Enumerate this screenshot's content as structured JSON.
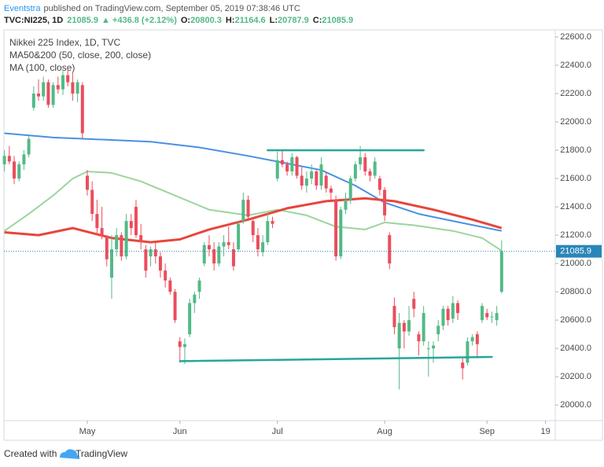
{
  "header": {
    "author": "Eventstra",
    "published": "published on TradingView.com, September 05, 2019 07:38:46 UTC",
    "symbol": "TVC:NI225, 1D",
    "price": "21085.9",
    "change": "▲ +436.8 (+2.12%)",
    "ohlc": [
      {
        "label": "O:",
        "value": "20800.3"
      },
      {
        "label": "H:",
        "value": "21164.6"
      },
      {
        "label": "L:",
        "value": "20787.9"
      },
      {
        "label": "C:",
        "value": "21085.9"
      }
    ]
  },
  "footer": {
    "created": "Created with",
    "brand": "TradingView"
  },
  "chart_data": {
    "type": "candlestick",
    "legend": [
      "Nikkei 225 Index, 1D, TVC",
      "MA50&200 (50, close, 200, close)",
      "MA (100, close)"
    ],
    "up_color": "#53b987",
    "down_color": "#eb4d5c",
    "x": [
      0,
      1,
      2,
      3,
      4,
      5,
      6,
      7,
      8,
      9,
      10,
      11,
      12,
      13,
      14,
      15,
      16,
      17,
      18,
      19,
      20,
      21,
      22,
      23,
      24,
      25,
      26,
      27,
      28,
      29,
      30,
      31,
      32,
      33,
      34,
      35,
      36,
      37,
      38,
      39,
      40,
      41,
      42,
      43,
      44,
      45,
      46,
      47,
      48,
      49,
      50,
      51,
      52,
      53,
      54,
      55,
      56,
      57,
      58,
      59,
      60,
      61,
      62,
      63,
      64,
      65,
      66,
      67,
      68,
      69,
      70,
      71,
      72,
      73,
      74,
      75,
      76,
      77,
      78,
      79,
      80,
      81,
      82,
      83,
      84,
      85,
      86,
      87,
      88,
      89,
      90,
      91,
      92,
      93,
      94,
      95,
      96,
      97,
      98,
      99,
      100,
      101,
      102
    ],
    "open": [
      21700,
      21760,
      21720,
      21600,
      21700,
      21770,
      22100,
      22200,
      22180,
      22280,
      22120,
      22260,
      22230,
      22330,
      22280,
      22200,
      22260,
      21620,
      21520,
      21350,
      21250,
      21190,
      20900,
      21100,
      21200,
      21050,
      21300,
      21400,
      21200,
      21100,
      21050,
      21100,
      21050,
      20950,
      20880,
      20800,
      20450,
      20410,
      20500,
      20720,
      20800,
      21000,
      21130,
      21100,
      21000,
      21120,
      21150,
      21100,
      21100,
      21300,
      21450,
      21300,
      21200,
      21080,
      21150,
      21300,
      21600,
      21730,
      21700,
      21650,
      21750,
      21620,
      21550,
      21600,
      21650,
      21550,
      21620,
      21530,
      21450,
      21050,
      21380,
      21450,
      21600,
      21700,
      21750,
      21650,
      21620,
      21600,
      21520,
      21200,
      20700,
      20400,
      20580,
      20520,
      20750,
      20500,
      20450,
      20400,
      20400,
      20500,
      20560,
      20680,
      20610,
      20720,
      20300,
      20300,
      20450,
      20500,
      20600,
      20650,
      20620,
      20600,
      20800.3
    ],
    "high": [
      21800,
      21830,
      21760,
      21720,
      21800,
      21900,
      22250,
      22300,
      22320,
      22300,
      22280,
      22320,
      22360,
      22380,
      22350,
      22300,
      22280,
      21660,
      21580,
      21450,
      21400,
      21200,
      21200,
      21250,
      21220,
      21350,
      21350,
      21450,
      21280,
      21130,
      21120,
      21150,
      21080,
      21000,
      20900,
      20820,
      20480,
      20470,
      20750,
      20800,
      20900,
      21150,
      21200,
      21150,
      21150,
      21200,
      21260,
      21150,
      21300,
      21500,
      21480,
      21320,
      21250,
      21200,
      21350,
      21330,
      21790,
      21800,
      21720,
      21780,
      21760,
      21680,
      21650,
      21700,
      21660,
      21750,
      21640,
      21550,
      21480,
      21400,
      21500,
      21620,
      21720,
      21830,
      21780,
      21670,
      21750,
      21620,
      21540,
      21220,
      20760,
      20650,
      20600,
      20700,
      20800,
      20520,
      20700,
      20450,
      20450,
      20600,
      20700,
      20700,
      20770,
      20740,
      20330,
      20480,
      20500,
      20520,
      20720,
      20680,
      20660,
      20700,
      21164.6
    ],
    "low": [
      21650,
      21700,
      21560,
      21580,
      21660,
      21750,
      22080,
      22150,
      22150,
      22100,
      22100,
      22200,
      22190,
      22250,
      22150,
      22140,
      21880,
      21480,
      21300,
      21200,
      21170,
      20980,
      20750,
      21050,
      21020,
      21030,
      21200,
      21180,
      21100,
      20900,
      20980,
      21000,
      20900,
      20830,
      20780,
      20580,
      20300,
      20290,
      20480,
      20650,
      20750,
      20980,
      21050,
      20950,
      20980,
      21050,
      21100,
      20950,
      21080,
      21280,
      21300,
      21150,
      21050,
      21050,
      21130,
      21250,
      21580,
      21680,
      21620,
      21620,
      21600,
      21520,
      21500,
      21560,
      21520,
      21520,
      21500,
      21450,
      21020,
      21030,
      21350,
      21420,
      21580,
      21660,
      21620,
      21580,
      21600,
      21480,
      21300,
      20960,
      20500,
      20110,
      20400,
      20490,
      20620,
      20350,
      20420,
      20200,
      20300,
      20450,
      20530,
      20560,
      20580,
      20600,
      20180,
      20280,
      20420,
      20330,
      20580,
      20600,
      20580,
      20560,
      20787.9
    ],
    "close": [
      21760,
      21720,
      21600,
      21700,
      21770,
      21880,
      22200,
      22180,
      22280,
      22120,
      22260,
      22230,
      22330,
      22280,
      22200,
      22280,
      21920,
      21520,
      21350,
      21250,
      21200,
      21030,
      21100,
      21200,
      21050,
      21300,
      21250,
      21200,
      21150,
      20950,
      21100,
      21050,
      20950,
      20880,
      20800,
      20600,
      20410,
      20430,
      20720,
      20780,
      20880,
      21130,
      21100,
      21000,
      21120,
      21150,
      21130,
      20980,
      21280,
      21450,
      21330,
      21200,
      21100,
      21150,
      21300,
      21280,
      21730,
      21700,
      21650,
      21750,
      21620,
      21550,
      21600,
      21650,
      21550,
      21700,
      21530,
      21500,
      21050,
      21380,
      21450,
      21600,
      21700,
      21750,
      21650,
      21620,
      21720,
      21520,
      21340,
      21000,
      20550,
      20580,
      20520,
      20600,
      20680,
      20450,
      20650,
      20400,
      20420,
      20560,
      20680,
      20600,
      20720,
      20650,
      20260,
      20450,
      20480,
      20430,
      20700,
      20620,
      20625,
      20650,
      21085.9
    ],
    "lines": [
      {
        "color": "#4a90e2",
        "width": 2,
        "x": [
          0,
          10,
          17,
          30,
          40,
          50,
          56,
          65,
          72,
          78,
          85,
          92,
          102
        ],
        "values": [
          21920,
          21890,
          21880,
          21860,
          21820,
          21760,
          21720,
          21660,
          21550,
          21430,
          21350,
          21300,
          21230
        ]
      },
      {
        "color": "#9bd59e",
        "width": 2,
        "x": [
          0,
          5,
          10,
          14,
          17,
          22,
          28,
          35,
          42,
          50,
          56,
          62,
          68,
          74,
          78,
          84,
          92,
          98,
          102
        ],
        "values": [
          21230,
          21350,
          21480,
          21600,
          21650,
          21640,
          21580,
          21480,
          21380,
          21340,
          21380,
          21340,
          21260,
          21240,
          21290,
          21270,
          21230,
          21180,
          21090
        ]
      },
      {
        "color": "#e8453c",
        "width": 3,
        "x": [
          0,
          7,
          14,
          22,
          30,
          36,
          42,
          50,
          58,
          66,
          74,
          80,
          88,
          96,
          102
        ],
        "values": [
          21220,
          21200,
          21250,
          21180,
          21150,
          21170,
          21240,
          21310,
          21390,
          21440,
          21460,
          21440,
          21380,
          21310,
          21250
        ]
      }
    ],
    "trendlines": [
      {
        "color": "#26a69a",
        "x": [
          54,
          86
        ],
        "values": [
          21800,
          21800
        ]
      },
      {
        "color": "#26a69a",
        "x": [
          36,
          100
        ],
        "values": [
          20310,
          20340
        ]
      }
    ],
    "last_price_color": "#2a86b8",
    "xlim": [
      -0.1,
      113
    ],
    "ylim": [
      19890,
      22650
    ],
    "xticks": [
      {
        "value": 17,
        "label": "May"
      },
      {
        "value": 36,
        "label": "Jun"
      },
      {
        "value": 56,
        "label": "Jul"
      },
      {
        "value": 78,
        "label": "Aug"
      },
      {
        "value": 99,
        "label": "Sep"
      },
      {
        "value": 111,
        "label": "19"
      }
    ],
    "yticks": [
      {
        "value": 20000,
        "label": "20000.0"
      },
      {
        "value": 20200,
        "label": "20200.0"
      },
      {
        "value": 20400,
        "label": "20400.0"
      },
      {
        "value": 20600,
        "label": "20600.0"
      },
      {
        "value": 20800,
        "label": "20800.0"
      },
      {
        "value": 21000,
        "label": "21000.0"
      },
      {
        "value": 21200,
        "label": "21200.0"
      },
      {
        "value": 21400,
        "label": "21400.0"
      },
      {
        "value": 21600,
        "label": "21600.0"
      },
      {
        "value": 21800,
        "label": "21800.0"
      },
      {
        "value": 22000,
        "label": "22000.0"
      },
      {
        "value": 22200,
        "label": "22200.0"
      },
      {
        "value": 22400,
        "label": "22400.0"
      },
      {
        "value": 22600,
        "label": "22600.0"
      }
    ],
    "grid": false
  }
}
